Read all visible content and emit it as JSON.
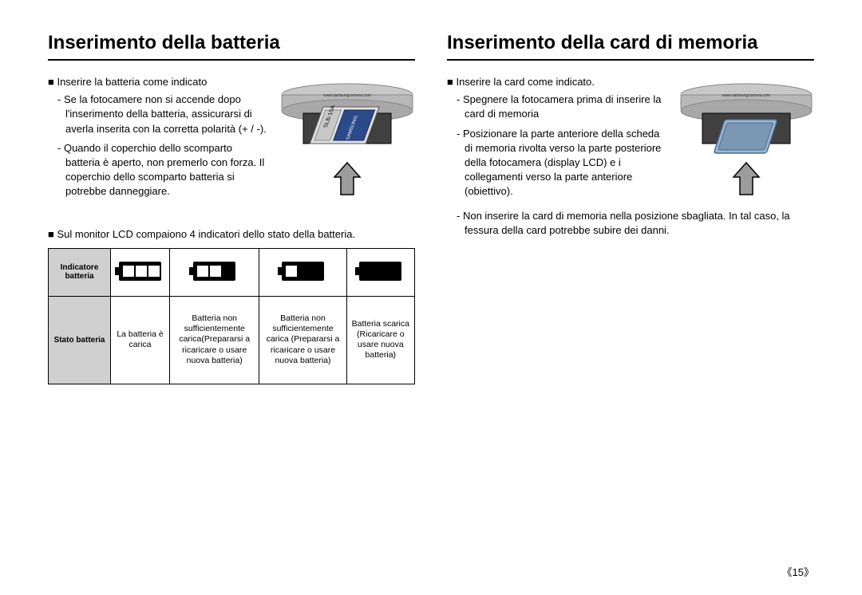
{
  "left": {
    "title": "Inserimento della batteria",
    "heading": "Inserire la batteria come indicato",
    "bullets": [
      "Se la fotocamere non si accende dopo l'inserimento della batteria, assicurarsi di averla inserita con la corretta polarità (+ / -).",
      "Quando il coperchio dello scomparto batteria è aperto, non premerlo con forza. Il coperchio dello scomparto batteria si potrebbe danneggiare."
    ],
    "lcd_note": "Sul monitor LCD compaiono 4 indicatori dello stato della batteria.",
    "table": {
      "row1_label": "Indicatore batteria",
      "row2_label": "Stato batteria",
      "status": [
        "La batteria è carica",
        "Batteria non sufficientemente carica(Prepararsi a ricaricare o usare nuova batteria)",
        "Batteria non sufficientemente carica (Prepararsi a ricaricare o usare nuova batteria)",
        "Batteria scarica (Ricaricare o usare nuova batteria)"
      ],
      "icon_levels": [
        3,
        2,
        1,
        0
      ]
    },
    "illustration": {
      "camera_body": "#b8b8b8",
      "camera_dark": "#555555",
      "battery_color": "#e8e8e8",
      "label_text": "SLB-10A",
      "url_text": "www.samsungcamera.com"
    }
  },
  "right": {
    "title": "Inserimento della card di memoria",
    "heading": "Inserire la card come indicato.",
    "bullets": [
      "Spegnere la fotocamera prima di inserire la card di memoria",
      "Posizionare la parte anteriore della scheda di memoria rivolta verso la parte posteriore della fotocamera (display LCD) e i collegamenti verso la parte anteriore (obiettivo).",
      "Non inserire la card di memoria nella posizione sbagliata. In tal caso, la fessura della card potrebbe subire dei danni."
    ],
    "illustration": {
      "camera_body": "#b8b8b8",
      "camera_dark": "#555555",
      "card_color": "#9ab8d4",
      "url_text": "www.samsungcamera.com"
    }
  },
  "page_number": "《15》",
  "colors": {
    "arrow_fill": "#9c9c9c",
    "arrow_stroke": "#000000",
    "icon_body": "#000000",
    "icon_empty": "#ffffff"
  }
}
